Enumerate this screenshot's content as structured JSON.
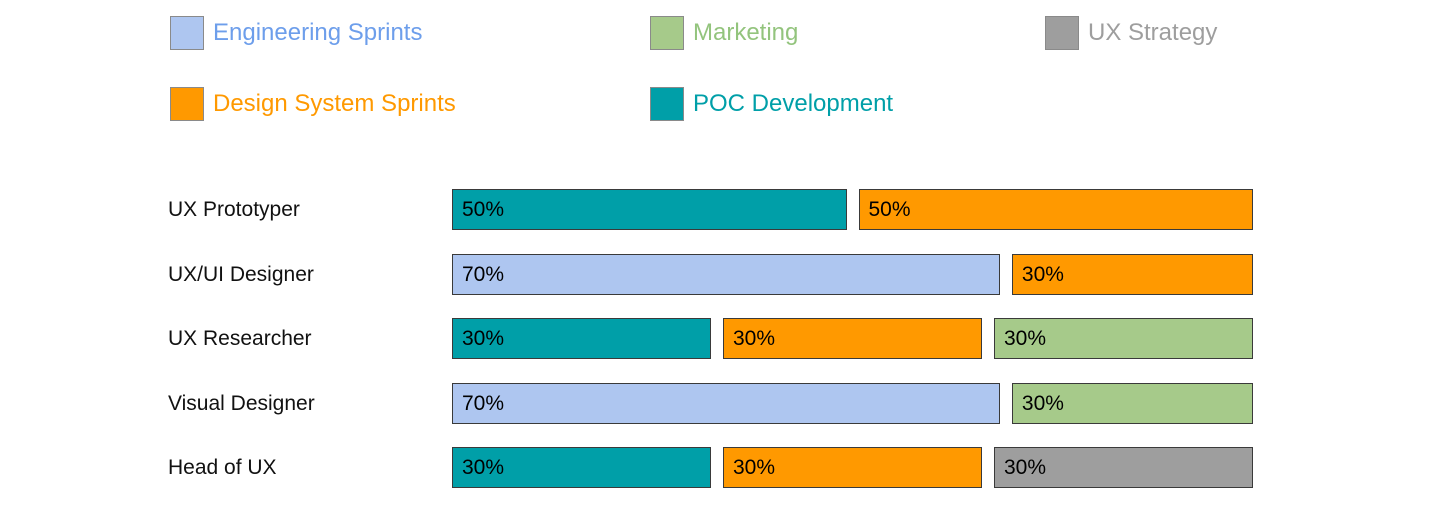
{
  "page": {
    "background": "#ffffff"
  },
  "legend": {
    "position": "top",
    "items": [
      {
        "label": "Engineering Sprints",
        "swatch_color": "#aec6f0",
        "text_color": "#6d9eeb",
        "row": 0,
        "col": 0
      },
      {
        "label": "Marketing",
        "swatch_color": "#a6ca8a",
        "text_color": "#93c47d",
        "row": 0,
        "col": 1
      },
      {
        "label": "UX Strategy",
        "swatch_color": "#9e9e9e",
        "text_color": "#9e9e9e",
        "row": 0,
        "col": 2
      },
      {
        "label": "Design System Sprints",
        "swatch_color": "#ff9900",
        "text_color": "#ff9900",
        "row": 1,
        "col": 0
      },
      {
        "label": "POC Development",
        "swatch_color": "#009fa8",
        "text_color": "#009fa8",
        "row": 1,
        "col": 1
      }
    ]
  },
  "chart_data": {
    "type": "bar",
    "orientation": "horizontal",
    "stacked": true,
    "value_unit": "%",
    "legend_position": "top",
    "grid": false,
    "axis_labels_visible": false,
    "categories": [
      "UX Prototyper",
      "UX/UI Designer",
      "UX Researcher",
      "Visual Designer",
      "Head of UX"
    ],
    "series": [
      {
        "name": "Engineering Sprints",
        "color": "#aec6f0"
      },
      {
        "name": "Marketing",
        "color": "#a6ca8a"
      },
      {
        "name": "UX Strategy",
        "color": "#9e9e9e"
      },
      {
        "name": "Design System Sprints",
        "color": "#ff9900"
      },
      {
        "name": "POC Development",
        "color": "#009fa8"
      }
    ],
    "rows": [
      {
        "category": "UX Prototyper",
        "segments": [
          {
            "series": "POC Development",
            "value": 50,
            "label": "50%"
          },
          {
            "series": "Design System Sprints",
            "value": 50,
            "label": "50%"
          }
        ]
      },
      {
        "category": "UX/UI Designer",
        "segments": [
          {
            "series": "Engineering Sprints",
            "value": 70,
            "label": "70%"
          },
          {
            "series": "Design System Sprints",
            "value": 30,
            "label": "30%"
          }
        ]
      },
      {
        "category": "UX Researcher",
        "segments": [
          {
            "series": "POC Development",
            "value": 30,
            "label": "30%"
          },
          {
            "series": "Design System Sprints",
            "value": 30,
            "label": "30%"
          },
          {
            "series": "Marketing",
            "value": 30,
            "label": "30%"
          }
        ]
      },
      {
        "category": "Visual Designer",
        "segments": [
          {
            "series": "Engineering Sprints",
            "value": 70,
            "label": "70%"
          },
          {
            "series": "Marketing",
            "value": 30,
            "label": "30%"
          }
        ]
      },
      {
        "category": "Head of UX",
        "segments": [
          {
            "series": "POC Development",
            "value": 30,
            "label": "30%"
          },
          {
            "series": "Design System Sprints",
            "value": 30,
            "label": "30%"
          },
          {
            "series": "UX Strategy",
            "value": 30,
            "label": "30%"
          }
        ]
      }
    ]
  }
}
